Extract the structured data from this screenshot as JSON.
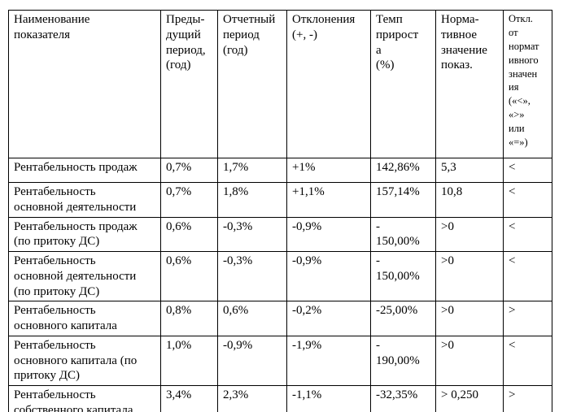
{
  "table": {
    "headers": [
      "Наименование\nпоказателя",
      "Преды-\nдущий\nпериод,\n(год)",
      "Отчетный\nпериод\n(год)",
      "Отклонения\n(+, -)",
      "Темп\nприрост\nа\n(%)",
      "Норма-\nтивное\nзначение\nпоказ.",
      "Откл.\nот\nнормат\nивного\nзначен\nия\n(«<»,\n«>»\nили\n«=»)"
    ],
    "rows": [
      {
        "cells": [
          "Рентабельность продаж",
          "0,7%",
          "1,7%",
          "+1%",
          "142,86%",
          "5,3",
          "<"
        ]
      },
      {
        "cells": [
          "Рентабельность\nосновной деятельности",
          "0,7%",
          "1,8%",
          "+1,1%",
          "157,14%",
          "10,8",
          "<"
        ]
      },
      {
        "cells": [
          "Рентабельность продаж\n(по притоку ДС)",
          "0,6%",
          "-0,3%",
          "-0,9%",
          "-\n150,00%",
          ">0",
          "<"
        ]
      },
      {
        "cells": [
          "Рентабельность\nосновной  деятельности\n(по притоку ДС)",
          "0,6%",
          "-0,3%",
          "-0,9%",
          "-\n150,00%",
          ">0",
          "<"
        ]
      },
      {
        "cells": [
          "Рентабельность\nосновного капитала",
          "0,8%",
          "0,6%",
          "-0,2%",
          "-25,00%",
          ">0",
          ">"
        ]
      },
      {
        "cells": [
          "Рентабельность\nосновного  капитала  (по\nпритоку ДС)",
          "1,0%",
          "-0,9%",
          "-1,9%",
          "-\n190,00%",
          ">0",
          "<"
        ]
      },
      {
        "cells": [
          "Рентабельность\nсобственного капитала",
          "3,4%",
          "2,3%",
          "-1,1%",
          "-32,35%",
          "> 0,250",
          ">"
        ]
      }
    ]
  }
}
